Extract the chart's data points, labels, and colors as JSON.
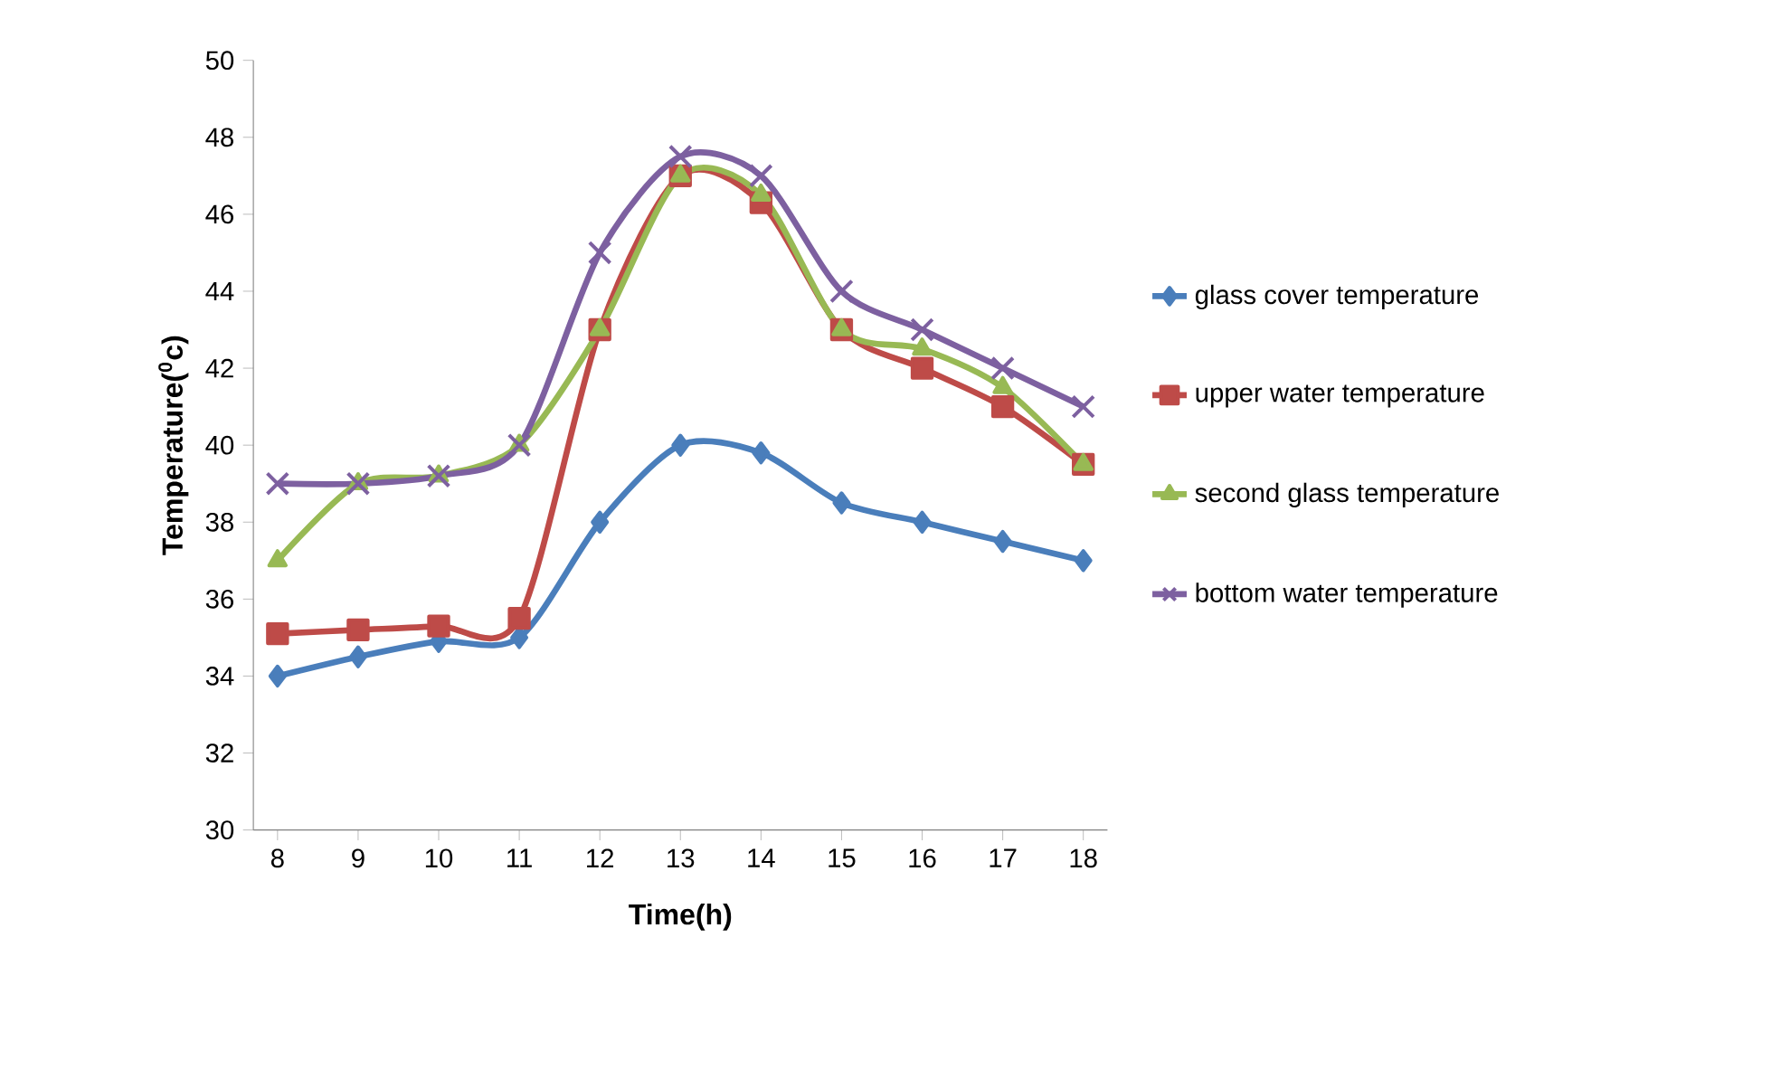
{
  "chart_data": {
    "type": "line",
    "xlabel": "Time(h)",
    "ylabel": "Temperature($^{0}$c)",
    "x": [
      8,
      9,
      10,
      11,
      12,
      13,
      14,
      15,
      16,
      17,
      18
    ],
    "xlim": [
      7.7,
      18.3
    ],
    "xticks": [
      8,
      9,
      10,
      11,
      12,
      13,
      14,
      15,
      16,
      17,
      18
    ],
    "ylim": [
      30,
      50
    ],
    "yticks": [
      30,
      32,
      34,
      36,
      38,
      40,
      42,
      44,
      46,
      48,
      50
    ],
    "legend": "right",
    "line_style": "solid",
    "series": [
      {
        "name": "glass cover temperature",
        "color": "#4a7ebb",
        "marker": "diamond",
        "values": [
          34,
          34.5,
          34.9,
          35,
          38,
          40,
          39.8,
          38.5,
          38,
          37.5,
          37
        ]
      },
      {
        "name": "upper water temperature",
        "color": "#be4b48",
        "marker": "square",
        "values": [
          35.1,
          35.2,
          35.3,
          35.5,
          43,
          47,
          46.3,
          43,
          42,
          41,
          39.5
        ]
      },
      {
        "name": "second glass temperature",
        "color": "#98b954",
        "marker": "triangle",
        "values": [
          37,
          39,
          39.2,
          40,
          43,
          47,
          46.5,
          43,
          42.5,
          41.5,
          39.5
        ]
      },
      {
        "name": "bottom water temperature",
        "color": "#7d60a0",
        "marker": "cross",
        "values": [
          39,
          39,
          39.2,
          40,
          45,
          47.5,
          47,
          44,
          43,
          42,
          41
        ]
      }
    ]
  }
}
